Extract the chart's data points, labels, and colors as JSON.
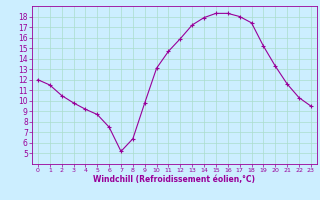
{
  "x": [
    0,
    1,
    2,
    3,
    4,
    5,
    6,
    7,
    8,
    9,
    10,
    11,
    12,
    13,
    14,
    15,
    16,
    17,
    18,
    19,
    20,
    21,
    22,
    23
  ],
  "y": [
    12.0,
    11.5,
    10.5,
    9.8,
    9.2,
    8.7,
    7.5,
    5.2,
    6.4,
    9.8,
    13.1,
    14.7,
    15.9,
    17.2,
    17.9,
    18.3,
    18.3,
    18.0,
    17.4,
    15.2,
    13.3,
    11.6,
    10.3,
    9.5
  ],
  "line_color": "#990099",
  "marker": "+",
  "bg_color": "#cceeff",
  "grid_color": "#aaddcc",
  "xlabel": "Windchill (Refroidissement éolien,°C)",
  "xlabel_color": "#990099",
  "axis_color": "#990099",
  "tick_color": "#990099",
  "ylim": [
    4,
    19
  ],
  "xlim": [
    -0.5,
    23.5
  ],
  "yticks": [
    5,
    6,
    7,
    8,
    9,
    10,
    11,
    12,
    13,
    14,
    15,
    16,
    17,
    18
  ],
  "xticks": [
    0,
    1,
    2,
    3,
    4,
    5,
    6,
    7,
    8,
    9,
    10,
    11,
    12,
    13,
    14,
    15,
    16,
    17,
    18,
    19,
    20,
    21,
    22,
    23
  ],
  "tick_fontsize_x": 4.5,
  "tick_fontsize_y": 5.5,
  "xlabel_fontsize": 5.5,
  "linewidth": 0.8,
  "markersize": 3.0,
  "markeredgewidth": 0.8
}
